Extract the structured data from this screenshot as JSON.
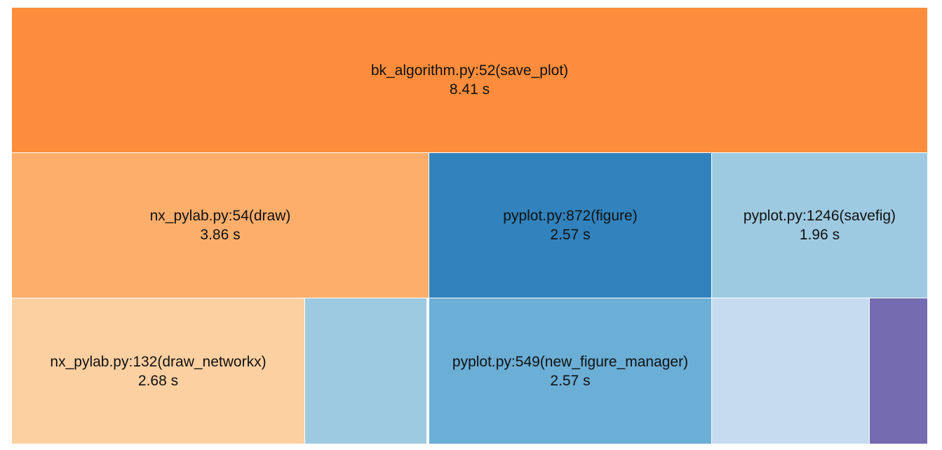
{
  "chart_data": {
    "type": "treemap",
    "unit": "s",
    "nodes": [
      {
        "id": "save_plot",
        "label": "bk_algorithm.py:52(save_plot)",
        "value": 8.41,
        "value_text": "8.41 s",
        "color": "#fd8d3c",
        "level": 0
      },
      {
        "id": "draw",
        "label": "nx_pylab.py:54(draw)",
        "value": 3.86,
        "value_text": "3.86 s",
        "color": "#fdae6b",
        "level": 1
      },
      {
        "id": "figure",
        "label": "pyplot.py:872(figure)",
        "value": 2.57,
        "value_text": "2.57 s",
        "color": "#3182bd",
        "level": 1
      },
      {
        "id": "savefig",
        "label": "pyplot.py:1246(savefig)",
        "value": 1.96,
        "value_text": "1.96 s",
        "color": "#9ecae1",
        "level": 1
      },
      {
        "id": "draw_networkx",
        "label": "nx_pylab.py:132(draw_networkx)",
        "value": 2.68,
        "value_text": "2.68 s",
        "color": "#fdd0a2",
        "level": 2
      },
      {
        "id": "draw_child_2",
        "label": "",
        "value_text": "",
        "color": "#9ecae1",
        "level": 2
      },
      {
        "id": "new_figure_manager",
        "label": "pyplot.py:549(new_figure_manager)",
        "value": 2.57,
        "value_text": "2.57 s",
        "color": "#6baed6",
        "level": 2
      },
      {
        "id": "savefig_child_1",
        "label": "",
        "value_text": "",
        "color": "#c6dbef",
        "level": 2
      },
      {
        "id": "savefig_child_2",
        "label": "",
        "value_text": "",
        "color": "#756bb1",
        "level": 2
      }
    ]
  }
}
